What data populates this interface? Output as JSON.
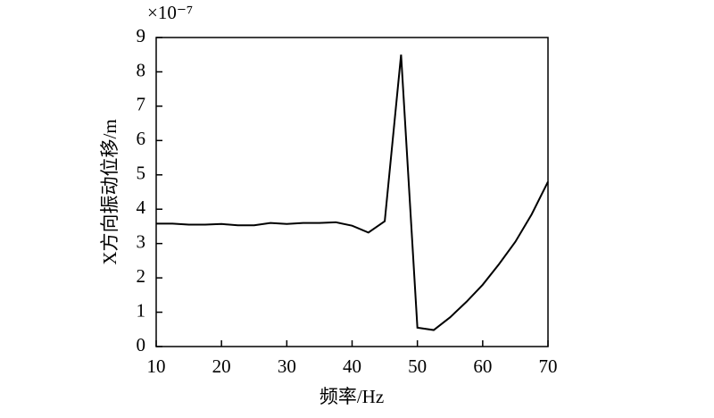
{
  "chart_data": {
    "type": "line",
    "y_multiplier": "×10⁻⁷",
    "xlabel": "频率/Hz",
    "ylabel": "X方向振动位移/m",
    "x": [
      10,
      12.5,
      15,
      17.5,
      20,
      22.5,
      25,
      27.5,
      30,
      32.5,
      35,
      37.5,
      40,
      42.5,
      45,
      47.5,
      50,
      52.5,
      55,
      57.5,
      60,
      62.5,
      65,
      67.5,
      70
    ],
    "series": [
      {
        "color": "#000000",
        "values": [
          3.58,
          3.58,
          3.55,
          3.55,
          3.57,
          3.53,
          3.53,
          3.6,
          3.57,
          3.6,
          3.6,
          3.62,
          3.52,
          3.32,
          3.65,
          8.5,
          0.55,
          0.48,
          0.85,
          1.3,
          1.8,
          2.4,
          3.05,
          3.85,
          4.8
        ]
      }
    ],
    "xlim": [
      10,
      70
    ],
    "xticks": [
      10,
      20,
      30,
      40,
      50,
      60,
      70
    ],
    "ylim": [
      0,
      9
    ],
    "yticks": [
      0,
      1,
      2,
      3,
      4,
      5,
      6,
      7,
      8,
      9
    ],
    "grid": false
  }
}
